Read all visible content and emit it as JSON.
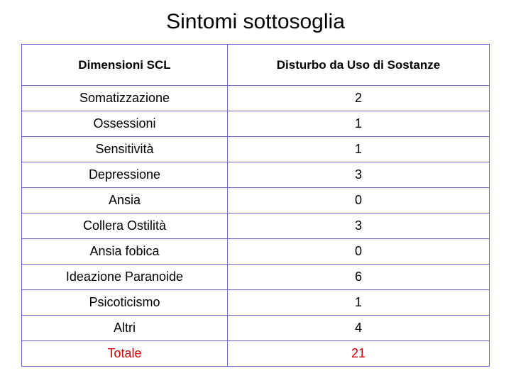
{
  "title": "Sintomi sottosoglia",
  "table": {
    "type": "table",
    "border_color": "#6666cc",
    "background_color": "#ffffff",
    "header_font_family": "Verdana",
    "header_fontsize": 17,
    "body_font_family": "Comic Sans MS",
    "body_fontsize": 18,
    "total_color": "#cc0000",
    "columns": [
      {
        "label": "Dimensioni SCL",
        "width_pct": 44,
        "align": "center"
      },
      {
        "label": "Disturbo da Uso di Sostanze",
        "width_pct": 56,
        "align": "center"
      }
    ],
    "rows": [
      {
        "dim": "Somatizzazione",
        "val": "2"
      },
      {
        "dim": "Ossessioni",
        "val": "1"
      },
      {
        "dim": "Sensitività",
        "val": "1"
      },
      {
        "dim": "Depressione",
        "val": "3"
      },
      {
        "dim": "Ansia",
        "val": "0"
      },
      {
        "dim": "Collera Ostilità",
        "val": "3"
      },
      {
        "dim": "Ansia fobica",
        "val": "0"
      },
      {
        "dim": "Ideazione Paranoide",
        "val": "6"
      },
      {
        "dim": "Psicoticismo",
        "val": "1"
      },
      {
        "dim": "Altri",
        "val": "4"
      }
    ],
    "total": {
      "dim": "Totale",
      "val": "21"
    }
  }
}
